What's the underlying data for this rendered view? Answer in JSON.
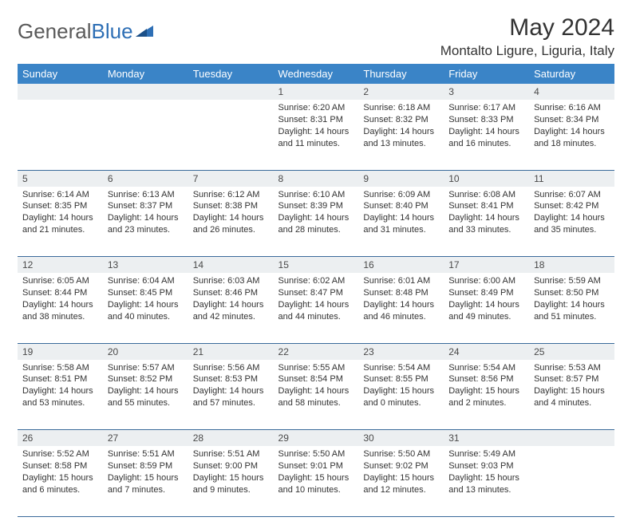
{
  "brand": {
    "part1": "General",
    "part2": "Blue"
  },
  "title": "May 2024",
  "location": "Montalto Ligure, Liguria, Italy",
  "colors": {
    "header_bg": "#3a84c7",
    "header_text": "#ffffff",
    "daynum_bg": "#eceff1",
    "rule": "#3a6a9a",
    "logo_gray": "#5a5a5a",
    "logo_blue": "#2e6fb5"
  },
  "weekdays": [
    "Sunday",
    "Monday",
    "Tuesday",
    "Wednesday",
    "Thursday",
    "Friday",
    "Saturday"
  ],
  "weeks": [
    [
      null,
      null,
      null,
      {
        "n": "1",
        "sr": "6:20 AM",
        "ss": "8:31 PM",
        "dl": "14 hours and 11 minutes."
      },
      {
        "n": "2",
        "sr": "6:18 AM",
        "ss": "8:32 PM",
        "dl": "14 hours and 13 minutes."
      },
      {
        "n": "3",
        "sr": "6:17 AM",
        "ss": "8:33 PM",
        "dl": "14 hours and 16 minutes."
      },
      {
        "n": "4",
        "sr": "6:16 AM",
        "ss": "8:34 PM",
        "dl": "14 hours and 18 minutes."
      }
    ],
    [
      {
        "n": "5",
        "sr": "6:14 AM",
        "ss": "8:35 PM",
        "dl": "14 hours and 21 minutes."
      },
      {
        "n": "6",
        "sr": "6:13 AM",
        "ss": "8:37 PM",
        "dl": "14 hours and 23 minutes."
      },
      {
        "n": "7",
        "sr": "6:12 AM",
        "ss": "8:38 PM",
        "dl": "14 hours and 26 minutes."
      },
      {
        "n": "8",
        "sr": "6:10 AM",
        "ss": "8:39 PM",
        "dl": "14 hours and 28 minutes."
      },
      {
        "n": "9",
        "sr": "6:09 AM",
        "ss": "8:40 PM",
        "dl": "14 hours and 31 minutes."
      },
      {
        "n": "10",
        "sr": "6:08 AM",
        "ss": "8:41 PM",
        "dl": "14 hours and 33 minutes."
      },
      {
        "n": "11",
        "sr": "6:07 AM",
        "ss": "8:42 PM",
        "dl": "14 hours and 35 minutes."
      }
    ],
    [
      {
        "n": "12",
        "sr": "6:05 AM",
        "ss": "8:44 PM",
        "dl": "14 hours and 38 minutes."
      },
      {
        "n": "13",
        "sr": "6:04 AM",
        "ss": "8:45 PM",
        "dl": "14 hours and 40 minutes."
      },
      {
        "n": "14",
        "sr": "6:03 AM",
        "ss": "8:46 PM",
        "dl": "14 hours and 42 minutes."
      },
      {
        "n": "15",
        "sr": "6:02 AM",
        "ss": "8:47 PM",
        "dl": "14 hours and 44 minutes."
      },
      {
        "n": "16",
        "sr": "6:01 AM",
        "ss": "8:48 PM",
        "dl": "14 hours and 46 minutes."
      },
      {
        "n": "17",
        "sr": "6:00 AM",
        "ss": "8:49 PM",
        "dl": "14 hours and 49 minutes."
      },
      {
        "n": "18",
        "sr": "5:59 AM",
        "ss": "8:50 PM",
        "dl": "14 hours and 51 minutes."
      }
    ],
    [
      {
        "n": "19",
        "sr": "5:58 AM",
        "ss": "8:51 PM",
        "dl": "14 hours and 53 minutes."
      },
      {
        "n": "20",
        "sr": "5:57 AM",
        "ss": "8:52 PM",
        "dl": "14 hours and 55 minutes."
      },
      {
        "n": "21",
        "sr": "5:56 AM",
        "ss": "8:53 PM",
        "dl": "14 hours and 57 minutes."
      },
      {
        "n": "22",
        "sr": "5:55 AM",
        "ss": "8:54 PM",
        "dl": "14 hours and 58 minutes."
      },
      {
        "n": "23",
        "sr": "5:54 AM",
        "ss": "8:55 PM",
        "dl": "15 hours and 0 minutes."
      },
      {
        "n": "24",
        "sr": "5:54 AM",
        "ss": "8:56 PM",
        "dl": "15 hours and 2 minutes."
      },
      {
        "n": "25",
        "sr": "5:53 AM",
        "ss": "8:57 PM",
        "dl": "15 hours and 4 minutes."
      }
    ],
    [
      {
        "n": "26",
        "sr": "5:52 AM",
        "ss": "8:58 PM",
        "dl": "15 hours and 6 minutes."
      },
      {
        "n": "27",
        "sr": "5:51 AM",
        "ss": "8:59 PM",
        "dl": "15 hours and 7 minutes."
      },
      {
        "n": "28",
        "sr": "5:51 AM",
        "ss": "9:00 PM",
        "dl": "15 hours and 9 minutes."
      },
      {
        "n": "29",
        "sr": "5:50 AM",
        "ss": "9:01 PM",
        "dl": "15 hours and 10 minutes."
      },
      {
        "n": "30",
        "sr": "5:50 AM",
        "ss": "9:02 PM",
        "dl": "15 hours and 12 minutes."
      },
      {
        "n": "31",
        "sr": "5:49 AM",
        "ss": "9:03 PM",
        "dl": "15 hours and 13 minutes."
      },
      null
    ]
  ],
  "labels": {
    "sunrise": "Sunrise:",
    "sunset": "Sunset:",
    "daylight": "Daylight:"
  }
}
